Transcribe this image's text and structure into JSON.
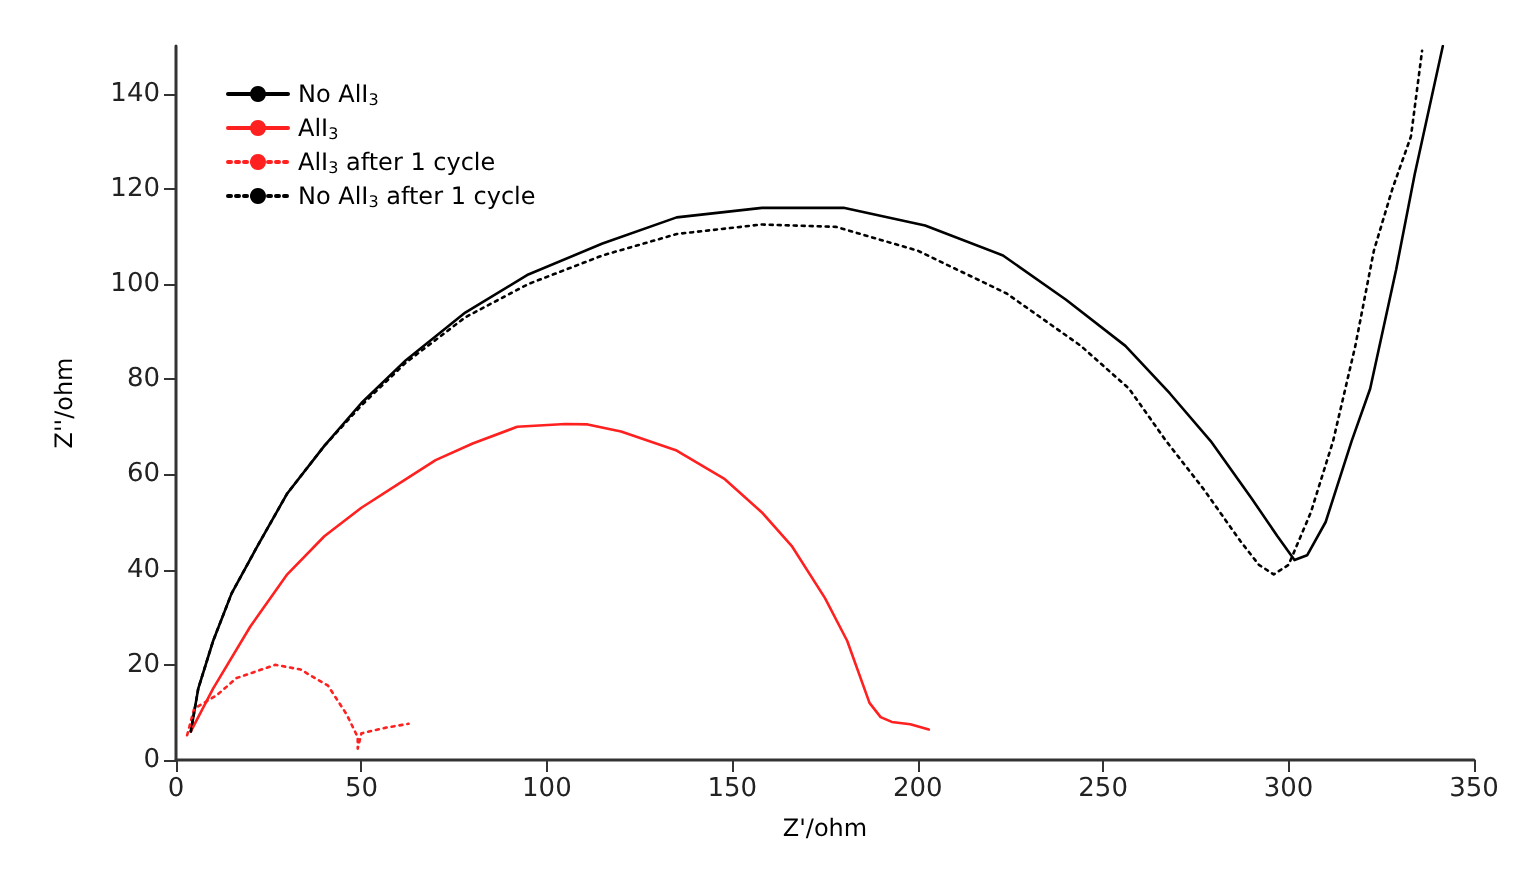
{
  "chart_data": {
    "type": "line",
    "xlabel": "Z'/ohm",
    "ylabel": "Z''/ohm",
    "xlim": [
      0,
      350
    ],
    "ylim": [
      0,
      150
    ],
    "xticks": [
      0,
      50,
      100,
      150,
      200,
      250,
      300,
      350
    ],
    "yticks": [
      0,
      20,
      40,
      60,
      80,
      100,
      120,
      140
    ],
    "grid": false,
    "legend": "top left",
    "marker": "none",
    "series": [
      {
        "name": "No AlI$_{3}$",
        "color": "#000000",
        "line_style": "solid",
        "x": [
          4,
          6,
          10,
          15,
          22,
          30,
          40,
          50,
          62,
          78,
          95,
          115,
          135,
          158,
          180,
          202,
          223,
          240,
          256,
          268,
          279,
          290,
          297,
          301.6,
          305,
          310,
          317,
          322,
          329,
          334,
          341.6
        ],
        "values": [
          6,
          15,
          25,
          35,
          45,
          56,
          66,
          75,
          84,
          94,
          102,
          108.5,
          114,
          116,
          116,
          112.3,
          106,
          96.7,
          87,
          77,
          67,
          55,
          47,
          42,
          43,
          50,
          67,
          78,
          103,
          123,
          150
        ]
      },
      {
        "name": "AlI$_{3}$",
        "color": "#ff2020",
        "line_style": "solid",
        "x": [
          4,
          10,
          20,
          30,
          40,
          50,
          60,
          70,
          80,
          92,
          105,
          111,
          120,
          135,
          148,
          158,
          166,
          175,
          181,
          187,
          190,
          193,
          198,
          203
        ],
        "values": [
          6,
          15,
          28,
          39,
          47,
          53,
          58,
          63,
          66.5,
          70,
          70.6,
          70.5,
          69,
          65,
          59,
          52,
          45,
          34,
          25,
          12,
          9,
          8,
          7.5,
          6.4
        ]
      },
      {
        "name": "AlI$_{3}$ after 1 cycle",
        "color": "#ff2020",
        "line_style": "dotted",
        "x": [
          3,
          4.9,
          11,
          16.3,
          26.8,
          33.6,
          41,
          46,
          49,
          49,
          50,
          56.6,
          62.7
        ],
        "values": [
          5.2,
          10.8,
          13.6,
          17.2,
          20,
          19,
          15.6,
          9.6,
          4.8,
          2.4,
          5.6,
          6.8,
          7.6
        ]
      },
      {
        "name": "No AlI$_{3}$ after 1 cycle",
        "color": "#000000",
        "line_style": "dotted",
        "x": [
          4,
          6,
          10,
          15,
          22,
          30,
          40,
          50,
          62,
          78,
          95,
          115,
          135,
          158,
          178,
          200,
          224,
          244,
          257,
          267,
          277,
          287,
          292,
          296,
          300,
          306,
          312,
          318,
          323,
          328,
          333,
          336
        ],
        "values": [
          6,
          15,
          25,
          35,
          45,
          56,
          66,
          74.5,
          83.5,
          93,
          100,
          106,
          110.5,
          112.5,
          112,
          107,
          98,
          87,
          78,
          67,
          57,
          46,
          41,
          39,
          41,
          52,
          67,
          87,
          107,
          120,
          131,
          149
        ]
      }
    ]
  }
}
